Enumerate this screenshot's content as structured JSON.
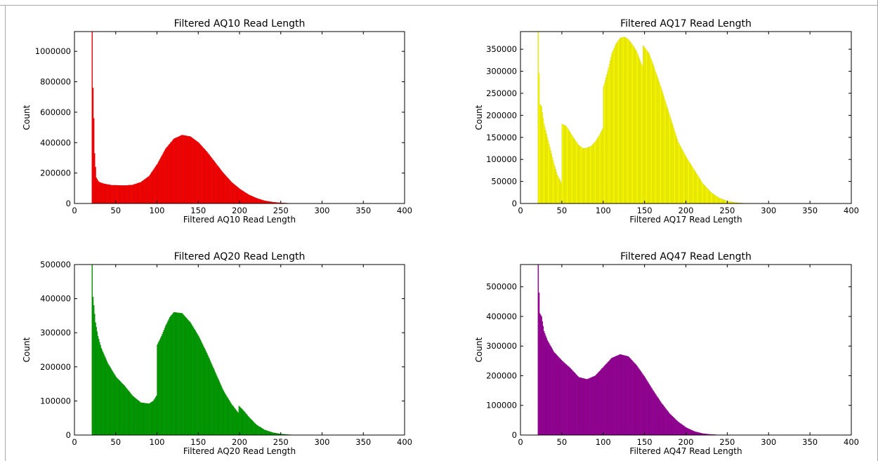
{
  "chart_data": [
    {
      "type": "bar",
      "title": "Filtered AQ10 Read Length",
      "xlabel": "Filtered AQ10 Read Length",
      "ylabel": "Count",
      "color": "#ff0000",
      "xlim": [
        0,
        400
      ],
      "ylim": [
        0,
        1130000
      ],
      "xticks": [
        0,
        50,
        100,
        150,
        200,
        250,
        300,
        350,
        400
      ],
      "yticks": [
        0,
        200000,
        400000,
        600000,
        800000,
        1000000
      ],
      "x_range": [
        21,
        280
      ],
      "points": [
        [
          21,
          1130000
        ],
        [
          22,
          760000
        ],
        [
          23,
          560000
        ],
        [
          24,
          330000
        ],
        [
          25,
          240000
        ],
        [
          26,
          170000
        ],
        [
          28,
          150000
        ],
        [
          30,
          140000
        ],
        [
          35,
          130000
        ],
        [
          40,
          125000
        ],
        [
          45,
          120000
        ],
        [
          50,
          120000
        ],
        [
          60,
          118000
        ],
        [
          70,
          122000
        ],
        [
          80,
          140000
        ],
        [
          90,
          180000
        ],
        [
          100,
          260000
        ],
        [
          110,
          360000
        ],
        [
          120,
          425000
        ],
        [
          130,
          450000
        ],
        [
          140,
          440000
        ],
        [
          150,
          400000
        ],
        [
          160,
          340000
        ],
        [
          170,
          270000
        ],
        [
          180,
          200000
        ],
        [
          190,
          140000
        ],
        [
          200,
          95000
        ],
        [
          210,
          60000
        ],
        [
          220,
          35000
        ],
        [
          230,
          18000
        ],
        [
          240,
          9000
        ],
        [
          250,
          4000
        ],
        [
          260,
          1500
        ],
        [
          270,
          500
        ],
        [
          280,
          0
        ]
      ]
    },
    {
      "type": "bar",
      "title": "Filtered AQ17 Read Length",
      "xlabel": "Filtered AQ17 Read Length",
      "ylabel": "Count",
      "color": "#ffff00",
      "xlim": [
        0,
        400
      ],
      "ylim": [
        0,
        390000
      ],
      "xticks": [
        0,
        50,
        100,
        150,
        200,
        250,
        300,
        350,
        400
      ],
      "yticks": [
        0,
        50000,
        100000,
        150000,
        200000,
        250000,
        300000,
        350000
      ],
      "x_range": [
        21,
        280
      ],
      "points": [
        [
          21,
          390000
        ],
        [
          22,
          295000
        ],
        [
          23,
          225000
        ],
        [
          25,
          220000
        ],
        [
          28,
          180000
        ],
        [
          32,
          150000
        ],
        [
          36,
          120000
        ],
        [
          40,
          90000
        ],
        [
          44,
          65000
        ],
        [
          48,
          50000
        ],
        [
          49,
          45000
        ],
        [
          50,
          180000
        ],
        [
          55,
          175000
        ],
        [
          60,
          160000
        ],
        [
          65,
          145000
        ],
        [
          70,
          132000
        ],
        [
          75,
          125000
        ],
        [
          80,
          126000
        ],
        [
          85,
          130000
        ],
        [
          90,
          140000
        ],
        [
          95,
          155000
        ],
        [
          99,
          170000
        ],
        [
          100,
          265000
        ],
        [
          105,
          300000
        ],
        [
          110,
          340000
        ],
        [
          115,
          362000
        ],
        [
          120,
          375000
        ],
        [
          125,
          378000
        ],
        [
          130,
          372000
        ],
        [
          135,
          360000
        ],
        [
          140,
          345000
        ],
        [
          145,
          320000
        ],
        [
          147,
          312000
        ],
        [
          148,
          358000
        ],
        [
          155,
          340000
        ],
        [
          160,
          315000
        ],
        [
          170,
          260000
        ],
        [
          180,
          200000
        ],
        [
          190,
          140000
        ],
        [
          200,
          105000
        ],
        [
          205,
          90000
        ],
        [
          210,
          75000
        ],
        [
          220,
          45000
        ],
        [
          230,
          25000
        ],
        [
          240,
          12000
        ],
        [
          250,
          5000
        ],
        [
          260,
          2000
        ],
        [
          270,
          500
        ],
        [
          280,
          0
        ]
      ]
    },
    {
      "type": "bar",
      "title": "Filtered AQ20 Read Length",
      "xlabel": "Filtered AQ20 Read Length",
      "ylabel": "Count",
      "color": "#00a000",
      "xlim": [
        0,
        400
      ],
      "ylim": [
        0,
        500000
      ],
      "xticks": [
        0,
        50,
        100,
        150,
        200,
        250,
        300,
        350,
        400
      ],
      "yticks": [
        0,
        100000,
        200000,
        300000,
        400000,
        500000
      ],
      "x_range": [
        21,
        280
      ],
      "points": [
        [
          21,
          500000
        ],
        [
          22,
          405000
        ],
        [
          23,
          380000
        ],
        [
          25,
          330000
        ],
        [
          28,
          290000
        ],
        [
          32,
          255000
        ],
        [
          40,
          210000
        ],
        [
          50,
          170000
        ],
        [
          60,
          145000
        ],
        [
          70,
          115000
        ],
        [
          80,
          95000
        ],
        [
          90,
          92000
        ],
        [
          95,
          100000
        ],
        [
          99,
          115000
        ],
        [
          100,
          265000
        ],
        [
          105,
          290000
        ],
        [
          110,
          320000
        ],
        [
          115,
          345000
        ],
        [
          120,
          360000
        ],
        [
          130,
          357000
        ],
        [
          140,
          330000
        ],
        [
          150,
          290000
        ],
        [
          160,
          240000
        ],
        [
          170,
          185000
        ],
        [
          180,
          130000
        ],
        [
          190,
          90000
        ],
        [
          198,
          65000
        ],
        [
          199,
          85000
        ],
        [
          205,
          70000
        ],
        [
          210,
          55000
        ],
        [
          220,
          30000
        ],
        [
          230,
          15000
        ],
        [
          240,
          7000
        ],
        [
          250,
          3000
        ],
        [
          260,
          1000
        ],
        [
          270,
          300
        ],
        [
          280,
          0
        ]
      ]
    },
    {
      "type": "bar",
      "title": "Filtered AQ47 Read Length",
      "xlabel": "Filtered AQ47 Read Length",
      "ylabel": "Count",
      "color": "#990099",
      "xlim": [
        0,
        400
      ],
      "ylim": [
        0,
        575000
      ],
      "xticks": [
        0,
        50,
        100,
        150,
        200,
        250,
        300,
        350,
        400
      ],
      "yticks": [
        0,
        100000,
        200000,
        300000,
        400000,
        500000
      ],
      "x_range": [
        21,
        270
      ],
      "points": [
        [
          21,
          575000
        ],
        [
          22,
          480000
        ],
        [
          23,
          410000
        ],
        [
          25,
          400000
        ],
        [
          28,
          350000
        ],
        [
          32,
          320000
        ],
        [
          40,
          280000
        ],
        [
          50,
          250000
        ],
        [
          60,
          225000
        ],
        [
          70,
          195000
        ],
        [
          80,
          188000
        ],
        [
          90,
          200000
        ],
        [
          100,
          230000
        ],
        [
          110,
          260000
        ],
        [
          120,
          272000
        ],
        [
          130,
          265000
        ],
        [
          140,
          235000
        ],
        [
          150,
          195000
        ],
        [
          160,
          150000
        ],
        [
          170,
          108000
        ],
        [
          180,
          72000
        ],
        [
          190,
          45000
        ],
        [
          200,
          25000
        ],
        [
          210,
          12000
        ],
        [
          220,
          5000
        ],
        [
          230,
          2000
        ],
        [
          240,
          500
        ],
        [
          250,
          100
        ],
        [
          260,
          0
        ],
        [
          270,
          0
        ]
      ]
    }
  ]
}
